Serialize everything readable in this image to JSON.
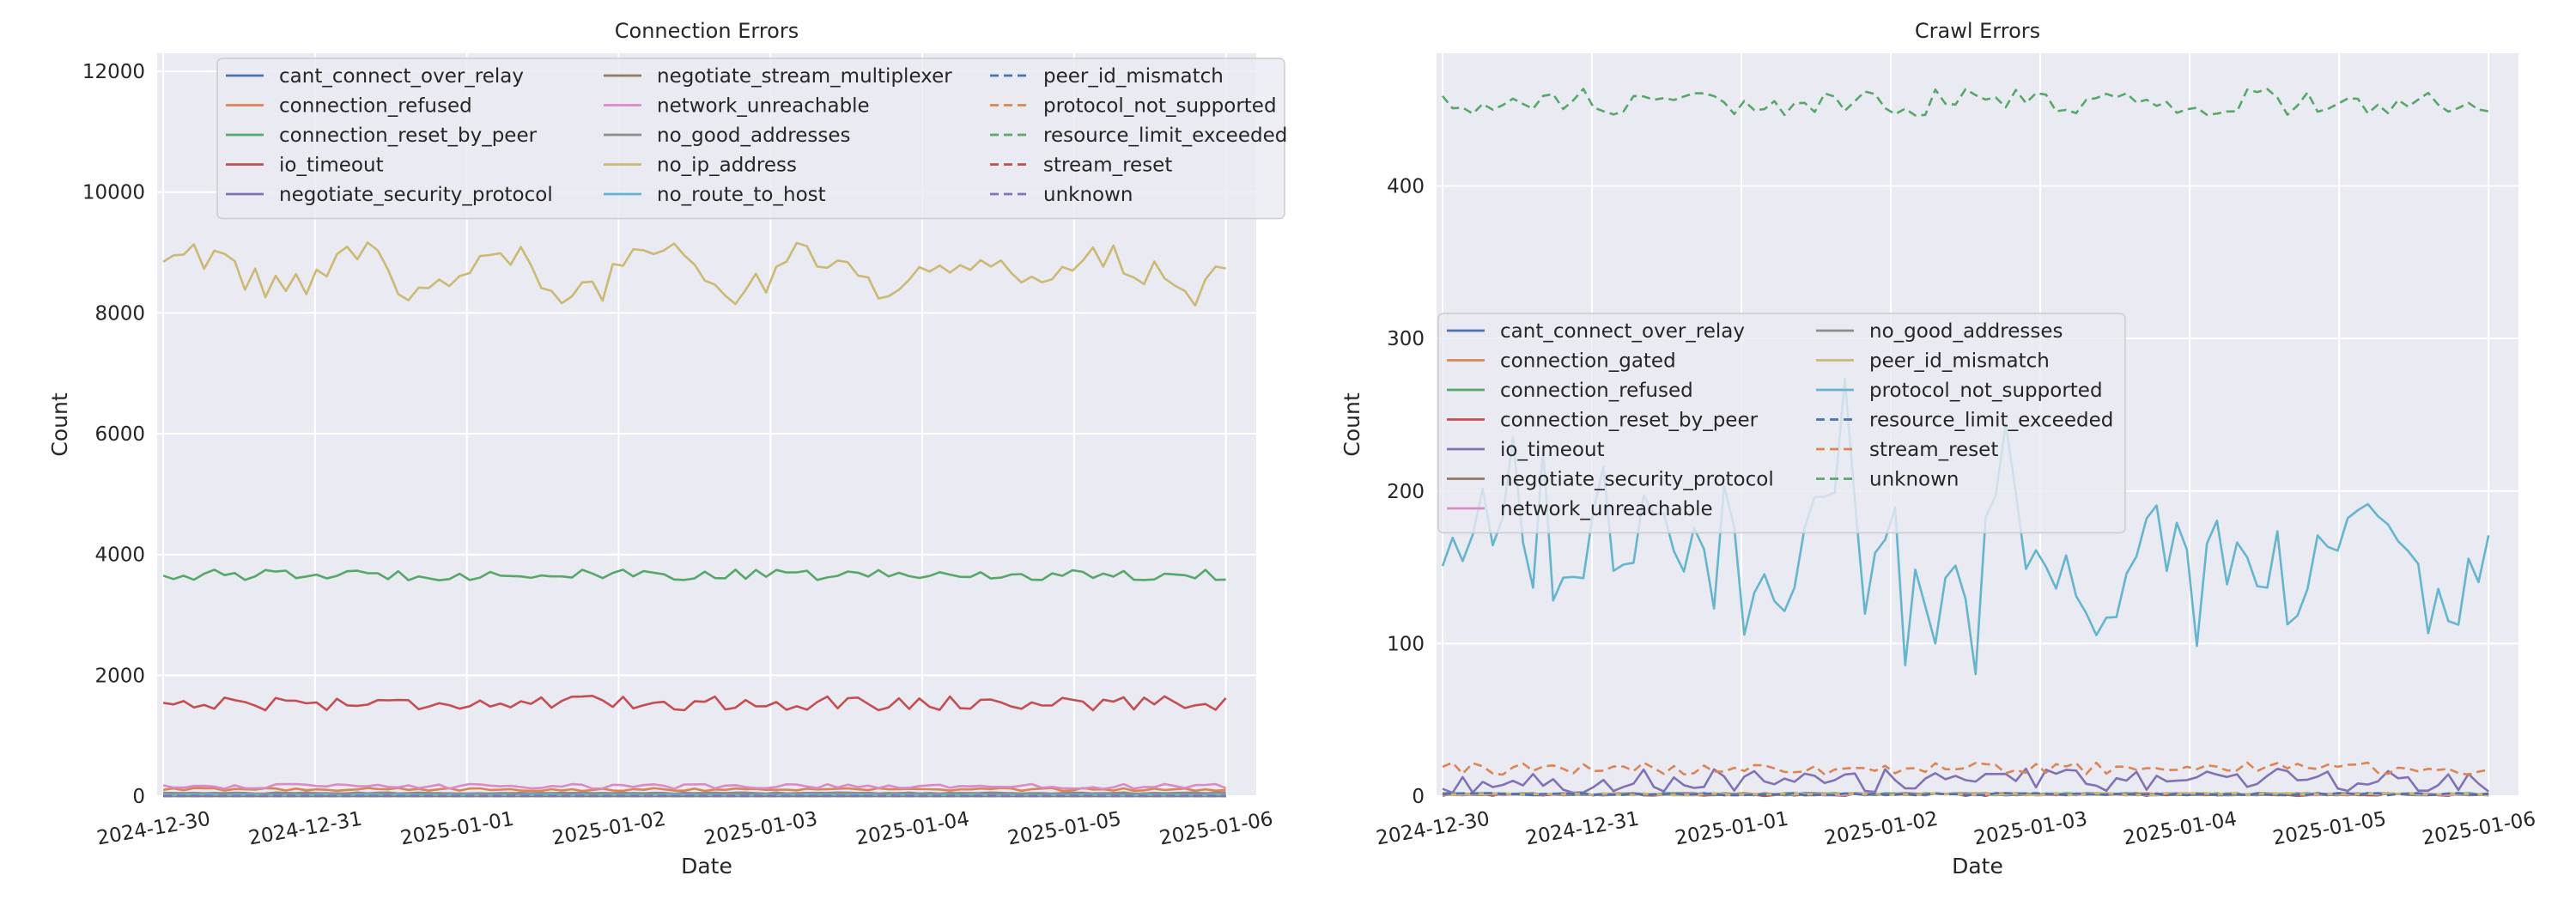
{
  "charts": [
    {
      "type": "line",
      "title": "Connection Errors",
      "xlabel": "Date",
      "ylabel": "Count",
      "ylim": [
        0,
        12300
      ],
      "yticks": [
        0,
        2000,
        4000,
        6000,
        8000,
        10000,
        12000
      ],
      "ytick_labels": [
        "0",
        "2000",
        "4000",
        "6000",
        "8000",
        "10000",
        "12000"
      ],
      "xlim_days": [
        -0.04,
        7.2
      ],
      "grid": true,
      "legend_location": "upper-center",
      "legend_columns": 3,
      "date_ticks": [
        "2024-12-30",
        "2024-12-31",
        "2025-01-01",
        "2025-01-02",
        "2025-01-03",
        "2025-01-04",
        "2025-01-05",
        "2025-01-06"
      ],
      "series": [
        {
          "name": "cant_connect_over_relay",
          "color": "#4c72b0",
          "dash": false,
          "pattern": "zero"
        },
        {
          "name": "connection_refused",
          "color": "#dd8452",
          "dash": false,
          "pattern": "band",
          "base": 110,
          "amp": 25
        },
        {
          "name": "connection_reset_by_peer",
          "color": "#55a868",
          "dash": false,
          "pattern": "band",
          "base": 3660,
          "amp": 90
        },
        {
          "name": "io_timeout",
          "color": "#c44e52",
          "dash": false,
          "pattern": "band",
          "base": 1540,
          "amp": 120
        },
        {
          "name": "negotiate_security_protocol",
          "color": "#8172b3",
          "dash": false,
          "pattern": "band",
          "base": 40,
          "amp": 10
        },
        {
          "name": "negotiate_stream_multiplexer",
          "color": "#937860",
          "dash": false,
          "pattern": "zero"
        },
        {
          "name": "network_unreachable",
          "color": "#da8bc3",
          "dash": false,
          "pattern": "band",
          "base": 160,
          "amp": 40
        },
        {
          "name": "no_good_addresses",
          "color": "#8c8c8c",
          "dash": false,
          "pattern": "band",
          "base": 50,
          "amp": 10
        },
        {
          "name": "no_ip_address",
          "color": "#ccb974",
          "dash": false,
          "pattern": "wave",
          "base": 8650,
          "amp": 550
        },
        {
          "name": "no_route_to_host",
          "color": "#64b5cd",
          "dash": false,
          "pattern": "band",
          "base": 20,
          "amp": 8
        },
        {
          "name": "peer_id_mismatch",
          "color": "#4c72b0",
          "dash": true,
          "pattern": "zero"
        },
        {
          "name": "protocol_not_supported",
          "color": "#dd8452",
          "dash": true,
          "pattern": "zero"
        },
        {
          "name": "resource_limit_exceeded",
          "color": "#55a868",
          "dash": true,
          "pattern": "zero"
        },
        {
          "name": "stream_reset",
          "color": "#c44e52",
          "dash": true,
          "pattern": "zero"
        },
        {
          "name": "unknown",
          "color": "#8172b3",
          "dash": true,
          "pattern": "zero"
        }
      ]
    },
    {
      "type": "line",
      "title": "Crawl Errors",
      "xlabel": "Date",
      "ylabel": "Count",
      "ylim": [
        0,
        487
      ],
      "yticks": [
        0,
        100,
        200,
        300,
        400
      ],
      "ytick_labels": [
        "0",
        "100",
        "200",
        "300",
        "400"
      ],
      "xlim_days": [
        -0.04,
        7.2
      ],
      "grid": true,
      "legend_location": "center-left",
      "legend_columns": 2,
      "date_ticks": [
        "2024-12-30",
        "2024-12-31",
        "2025-01-01",
        "2025-01-02",
        "2025-01-03",
        "2025-01-04",
        "2025-01-05",
        "2025-01-06"
      ],
      "series": [
        {
          "name": "cant_connect_over_relay",
          "color": "#4c72b0",
          "dash": false,
          "pattern": "zero"
        },
        {
          "name": "connection_gated",
          "color": "#dd8452",
          "dash": false,
          "pattern": "zero"
        },
        {
          "name": "connection_refused",
          "color": "#55a868",
          "dash": false,
          "pattern": "zero"
        },
        {
          "name": "connection_reset_by_peer",
          "color": "#c44e52",
          "dash": false,
          "pattern": "band",
          "base": 1,
          "amp": 1
        },
        {
          "name": "io_timeout",
          "color": "#8172b3",
          "dash": false,
          "pattern": "band",
          "base": 10,
          "amp": 8
        },
        {
          "name": "negotiate_security_protocol",
          "color": "#937860",
          "dash": false,
          "pattern": "zero"
        },
        {
          "name": "network_unreachable",
          "color": "#da8bc3",
          "dash": false,
          "pattern": "zero"
        },
        {
          "name": "no_good_addresses",
          "color": "#8c8c8c",
          "dash": false,
          "pattern": "zero"
        },
        {
          "name": "peer_id_mismatch",
          "color": "#ccb974",
          "dash": false,
          "pattern": "zero"
        },
        {
          "name": "protocol_not_supported",
          "color": "#64b5cd",
          "dash": false,
          "pattern": "spiky",
          "base": 150,
          "amp": 45
        },
        {
          "name": "resource_limit_exceeded",
          "color": "#4c72b0",
          "dash": true,
          "pattern": "zero"
        },
        {
          "name": "stream_reset",
          "color": "#dd8452",
          "dash": true,
          "pattern": "band",
          "base": 18,
          "amp": 4
        },
        {
          "name": "unknown",
          "color": "#55a868",
          "dash": true,
          "pattern": "band",
          "base": 455,
          "amp": 9
        }
      ]
    }
  ]
}
